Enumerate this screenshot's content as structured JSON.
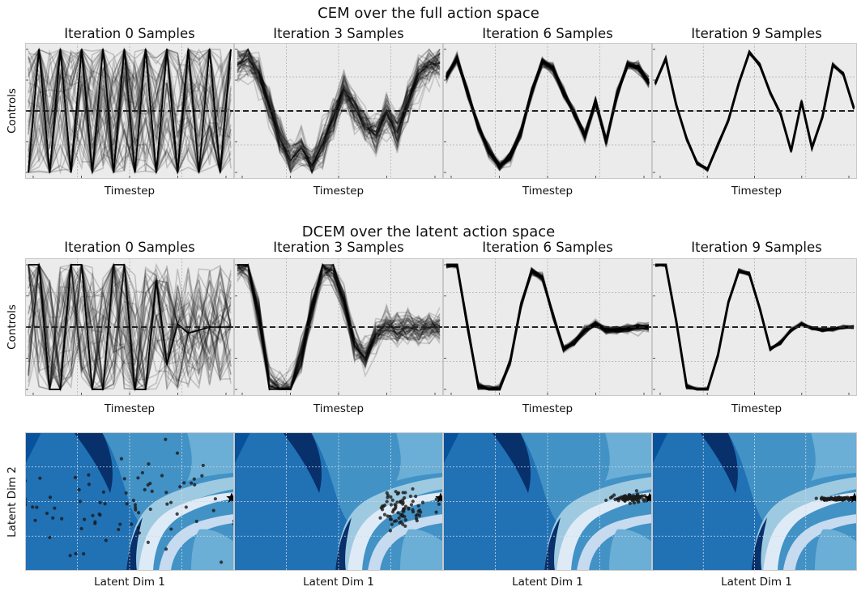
{
  "row1_title": "CEM over the full action space",
  "row2_title": "DCEM over the latent action space",
  "row1_panels": [
    {
      "title": "Iteration 0 Samples",
      "xlabel": "Timestep"
    },
    {
      "title": "Iteration 3 Samples",
      "xlabel": "Timestep"
    },
    {
      "title": "Iteration 6 Samples",
      "xlabel": "Timestep"
    },
    {
      "title": "Iteration 9 Samples",
      "xlabel": "Timestep"
    }
  ],
  "row2_panels": [
    {
      "title": "Iteration 0 Samples",
      "xlabel": "Timestep"
    },
    {
      "title": "Iteration 3 Samples",
      "xlabel": "Timestep"
    },
    {
      "title": "Iteration 6 Samples",
      "xlabel": "Timestep"
    },
    {
      "title": "Iteration 9 Samples",
      "xlabel": "Timestep"
    }
  ],
  "row3_panels": [
    {
      "xlabel": "Latent Dim 1"
    },
    {
      "xlabel": "Latent Dim 1"
    },
    {
      "xlabel": "Latent Dim 1"
    },
    {
      "xlabel": "Latent Dim 1"
    }
  ],
  "row1_ylabel": "Controls",
  "row2_ylabel": "Controls",
  "row3_ylabel": "Latent Dim 2",
  "colors": {
    "panel_bg": "#ebebeb",
    "line": "#000000",
    "dashed": "#222222",
    "point": "#1a1a1a",
    "contour": [
      "#08306b",
      "#08519c",
      "#2171b5",
      "#4292c6",
      "#6baed6",
      "#9ecae1",
      "#c6dbef",
      "#deebf7"
    ]
  },
  "chart_data": [
    {
      "type": "line",
      "title": "Iteration 0 Samples",
      "xlabel": "Timestep",
      "ylabel": "Controls",
      "ylim": [
        -1,
        1
      ],
      "reference_line": 0,
      "mean": [
        -1,
        1,
        -1,
        1,
        -1,
        1,
        -1,
        1,
        -1,
        1,
        -1,
        1,
        -1,
        1,
        -1,
        1,
        -1,
        1,
        -1,
        1
      ],
      "spread": 0.9,
      "samples_shown": 60
    },
    {
      "type": "line",
      "title": "Iteration 3 Samples",
      "xlabel": "Timestep",
      "ylabel": "Controls",
      "ylim": [
        -1,
        1
      ],
      "reference_line": 0,
      "mean": [
        0.75,
        0.85,
        0.6,
        0.1,
        -0.45,
        -0.8,
        -0.6,
        -0.9,
        -0.55,
        -0.1,
        0.35,
        0.05,
        -0.25,
        -0.4,
        -0.05,
        -0.35,
        0.15,
        0.6,
        0.75,
        0.78
      ],
      "spread": 0.3,
      "samples_shown": 60
    },
    {
      "type": "line",
      "title": "Iteration 6 Samples",
      "xlabel": "Timestep",
      "ylabel": "Controls",
      "ylim": [
        -1,
        1
      ],
      "reference_line": 0,
      "mean": [
        0.55,
        0.85,
        0.3,
        -0.25,
        -0.65,
        -0.9,
        -0.75,
        -0.35,
        0.3,
        0.8,
        0.7,
        0.3,
        -0.05,
        -0.4,
        0.15,
        -0.5,
        0.25,
        0.75,
        0.7,
        0.45
      ],
      "spread": 0.08,
      "samples_shown": 60
    },
    {
      "type": "line",
      "title": "Iteration 9 Samples",
      "xlabel": "Timestep",
      "ylabel": "Controls",
      "ylim": [
        -1,
        1
      ],
      "reference_line": 0,
      "mean": [
        0.45,
        0.85,
        0.1,
        -0.45,
        -0.85,
        -0.95,
        -0.55,
        -0.15,
        0.45,
        0.95,
        0.75,
        0.3,
        -0.05,
        -0.65,
        0.15,
        -0.6,
        -0.1,
        0.75,
        0.6,
        0.05
      ],
      "spread": 0.03,
      "samples_shown": 60
    },
    {
      "type": "line",
      "title": "Iteration 0 Samples",
      "xlabel": "Timestep",
      "ylabel": "Controls",
      "ylim": [
        -1,
        1
      ],
      "reference_line": 0,
      "mean": [
        1,
        1,
        -1,
        -1,
        1,
        1,
        -1,
        -1,
        1,
        1,
        -1,
        -1,
        0.75,
        -0.6,
        0.05,
        -0.1,
        -0.05,
        0,
        0,
        0
      ],
      "spread": 0.9,
      "samples_shown": 60
    },
    {
      "type": "line",
      "title": "Iteration 3 Samples",
      "xlabel": "Timestep",
      "ylabel": "Controls",
      "ylim": [
        -1,
        1
      ],
      "reference_line": 0,
      "mean": [
        1,
        1,
        0.2,
        -0.95,
        -1,
        -1,
        -0.5,
        0.3,
        0.95,
        0.9,
        0.4,
        -0.3,
        -0.5,
        -0.1,
        0.05,
        -0.05,
        0,
        -0.05,
        0,
        0
      ],
      "spread": 0.25,
      "samples_shown": 60
    },
    {
      "type": "line",
      "title": "Iteration 6 Samples",
      "xlabel": "Timestep",
      "ylabel": "Controls",
      "ylim": [
        -1,
        1
      ],
      "reference_line": 0,
      "mean": [
        1,
        1,
        0,
        -0.95,
        -1,
        -1,
        -0.55,
        0.35,
        0.9,
        0.8,
        0.2,
        -0.35,
        -0.25,
        -0.05,
        0.05,
        -0.05,
        -0.05,
        -0.03,
        0,
        0
      ],
      "spread": 0.06,
      "samples_shown": 60
    },
    {
      "type": "line",
      "title": "Iteration 9 Samples",
      "xlabel": "Timestep",
      "ylabel": "Controls",
      "ylim": [
        -1,
        1
      ],
      "reference_line": 0,
      "mean": [
        1,
        1,
        0.1,
        -0.95,
        -1,
        -1,
        -0.45,
        0.4,
        0.9,
        0.85,
        0.3,
        -0.35,
        -0.25,
        -0.05,
        0.05,
        -0.02,
        -0.05,
        -0.03,
        0,
        0
      ],
      "spread": 0.03,
      "samples_shown": 60
    },
    {
      "type": "scatter",
      "xlabel": "Latent Dim 1",
      "ylabel": "Latent Dim 2",
      "xlim": [
        -1,
        1
      ],
      "ylim": [
        -1,
        1
      ],
      "distribution": {
        "center": [
          -0.05,
          -0.05
        ],
        "spread": [
          0.9,
          0.75
        ],
        "count": 80
      }
    },
    {
      "type": "scatter",
      "xlabel": "Latent Dim 1",
      "ylabel": "Latent Dim 2",
      "xlim": [
        -1,
        1
      ],
      "ylim": [
        -1,
        1
      ],
      "distribution": {
        "center": [
          0.6,
          -0.1
        ],
        "spread": [
          0.25,
          0.22
        ],
        "count": 80
      }
    },
    {
      "type": "scatter",
      "xlabel": "Latent Dim 1",
      "ylabel": "Latent Dim 2",
      "xlim": [
        -1,
        1
      ],
      "ylim": [
        -1,
        1
      ],
      "distribution": {
        "center": [
          0.78,
          0.05
        ],
        "spread": [
          0.15,
          0.05
        ],
        "count": 80
      }
    },
    {
      "type": "scatter",
      "xlabel": "Latent Dim 1",
      "ylabel": "Latent Dim 2",
      "xlim": [
        -1,
        1
      ],
      "ylim": [
        -1,
        1
      ],
      "distribution": {
        "center": [
          0.82,
          0.04
        ],
        "spread": [
          0.14,
          0.02
        ],
        "count": 80
      }
    }
  ]
}
